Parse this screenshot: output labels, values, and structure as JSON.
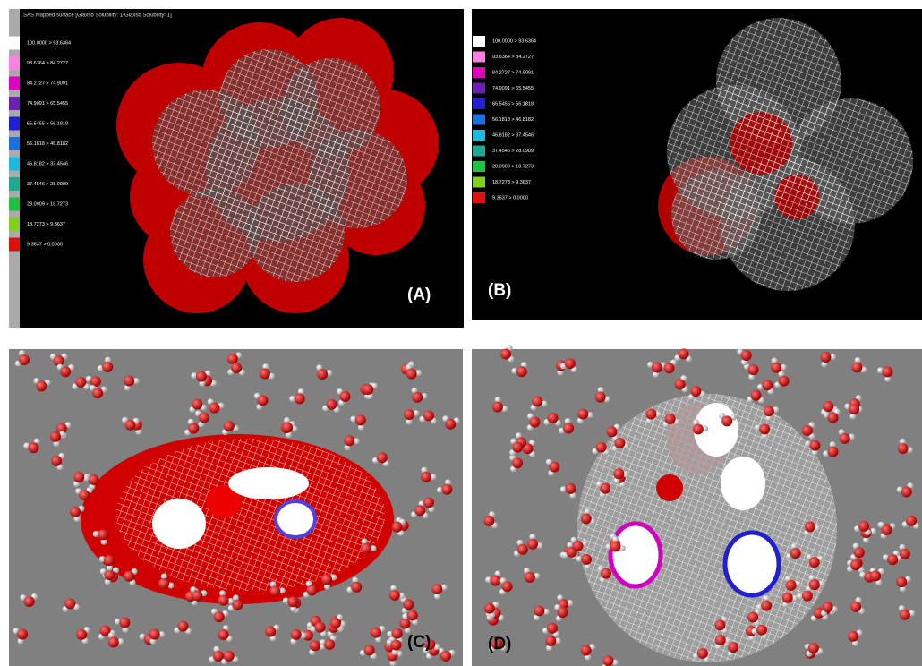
{
  "panels": {
    "a": {
      "title": "SAS mapped surface [Glaxsb Solubility: 1-Glaxsb Solubility: 1]",
      "label": "(A)"
    },
    "b": {
      "label": "(B)"
    },
    "c": {
      "label": "(C)"
    },
    "d": {
      "label": "(D)"
    }
  },
  "legend": [
    {
      "label": "100.0000 > 93.6364",
      "color": "#ffffff"
    },
    {
      "label": "93.6364 > 84.2727",
      "color": "#ff80e0"
    },
    {
      "label": "84.2727 > 74.9091",
      "color": "#e000c0"
    },
    {
      "label": "74.9091 > 65.5455",
      "color": "#6a1fb0"
    },
    {
      "label": "65.5455 > 56.1818",
      "color": "#2020d0"
    },
    {
      "label": "56.1818 > 46.8182",
      "color": "#1a70e0"
    },
    {
      "label": "46.8182 > 37.4546",
      "color": "#20b8e0"
    },
    {
      "label": "37.4546 > 28.0909",
      "color": "#20a890"
    },
    {
      "label": "28.0909 > 18.7273",
      "color": "#20c040"
    },
    {
      "label": "18.7273 > 9.3637",
      "color": "#80d020"
    },
    {
      "label": "9.3637 > 0.0000",
      "color": "#e01010"
    }
  ]
}
